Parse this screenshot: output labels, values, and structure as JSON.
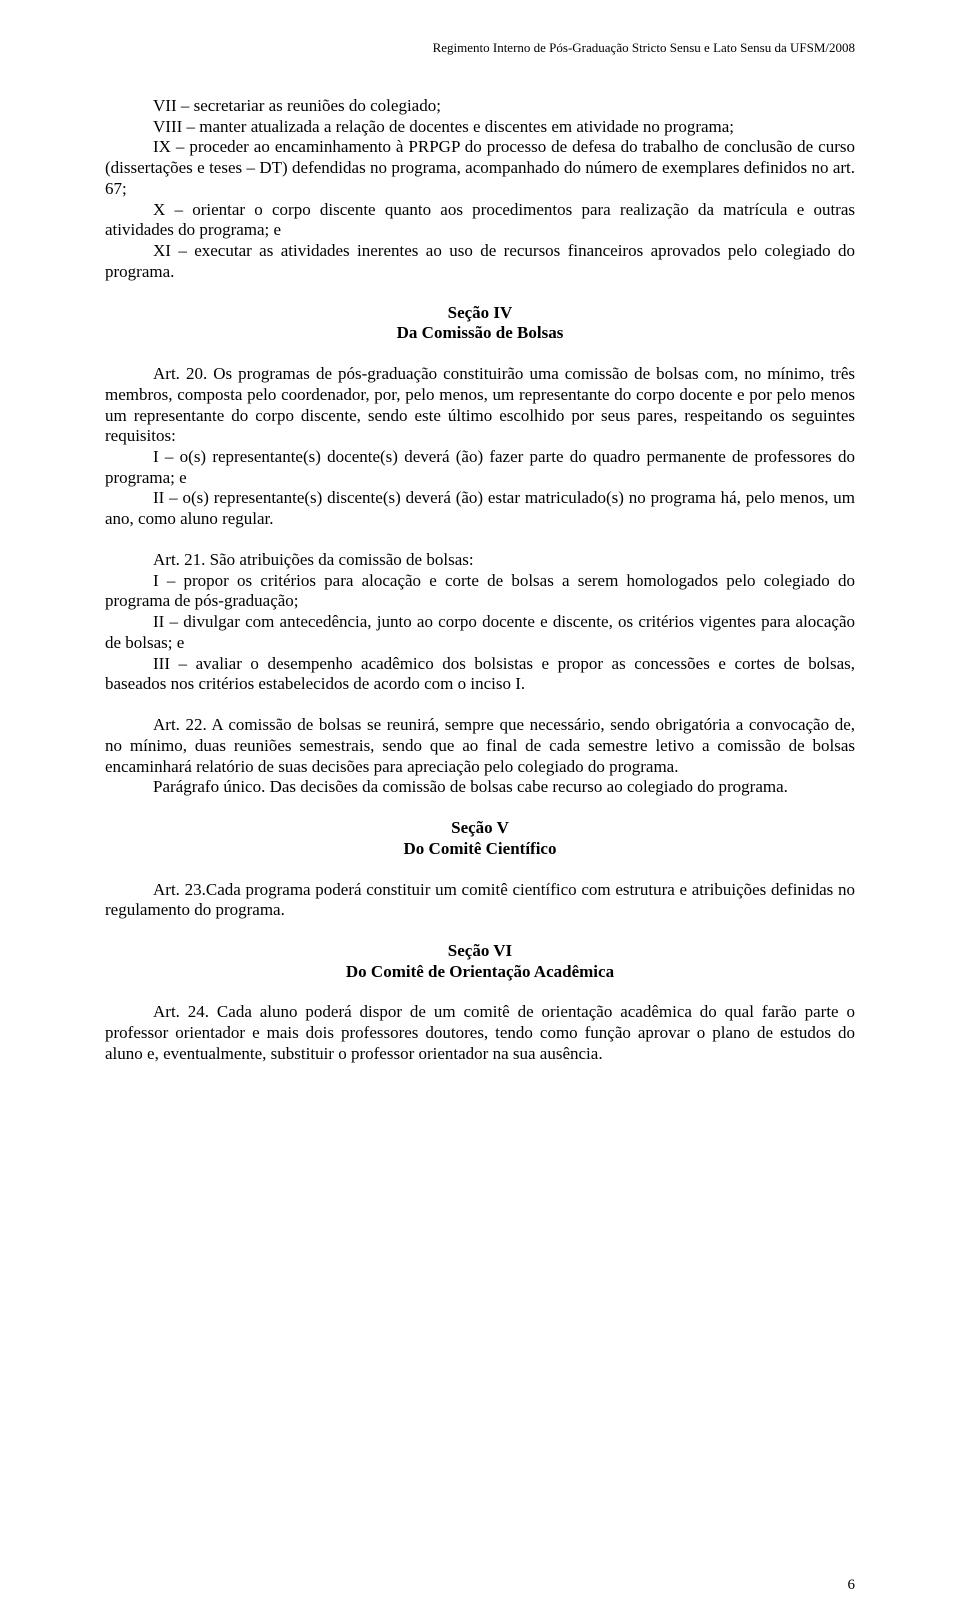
{
  "header": {
    "text": "Regimento Interno de Pós-Graduação Stricto Sensu e Lato Sensu da UFSM/2008"
  },
  "block1": {
    "p1": "VII – secretariar as reuniões do colegiado;",
    "p2": "VIII – manter atualizada a relação de docentes e discentes em atividade no programa;",
    "p3": "IX – proceder ao encaminhamento à PRPGP do processo de defesa do trabalho de conclusão de curso (dissertações e teses – DT) defendidas no programa, acompanhado do número de exemplares definidos no art. 67;",
    "p4": "X – orientar o corpo discente quanto aos procedimentos para realização da matrícula e outras atividades do programa; e",
    "p5": "XI – executar as atividades inerentes ao uso de recursos financeiros aprovados pelo colegiado do programa."
  },
  "section4": {
    "title1": "Seção IV",
    "title2": "Da Comissão de Bolsas"
  },
  "block2": {
    "p1": "Art. 20. Os programas de pós-graduação constituirão uma comissão de bolsas com, no mínimo, três membros, composta pelo coordenador, por, pelo menos, um representante do corpo docente e por pelo menos um representante do corpo discente, sendo este último escolhido por seus pares, respeitando os seguintes requisitos:",
    "p2": "I – o(s) representante(s) docente(s) deverá (ão) fazer parte do quadro permanente de professores do programa; e",
    "p3": "II – o(s) representante(s) discente(s) deverá (ão) estar matriculado(s) no programa há, pelo menos, um ano, como aluno regular."
  },
  "block3": {
    "p1": "Art. 21. São atribuições da comissão de bolsas:",
    "p2": "I – propor os critérios para alocação e corte de bolsas a serem homologados pelo colegiado do programa de pós-graduação;",
    "p3": "II – divulgar com antecedência, junto ao corpo docente e discente, os critérios vigentes para alocação de bolsas; e",
    "p4": "III – avaliar o desempenho acadêmico dos bolsistas e propor as concessões e cortes de bolsas, baseados nos critérios estabelecidos de acordo com o inciso I."
  },
  "block4": {
    "p1": "Art. 22. A comissão de bolsas se reunirá, sempre que necessário, sendo obrigatória a convocação de, no mínimo, duas reuniões semestrais, sendo que ao final de cada semestre letivo a comissão de bolsas encaminhará relatório de suas decisões para apreciação pelo colegiado do programa.",
    "p2": "Parágrafo único. Das decisões da comissão de bolsas cabe recurso ao colegiado do programa."
  },
  "section5": {
    "title1": "Seção V",
    "title2": "Do Comitê Científico"
  },
  "block5": {
    "p1": "Art. 23.Cada programa poderá constituir um comitê científico com estrutura e atribuições definidas no regulamento do programa."
  },
  "section6": {
    "title1": "Seção VI",
    "title2": "Do Comitê de Orientação Acadêmica"
  },
  "block6": {
    "p1": "Art. 24. Cada aluno poderá dispor de um comitê de orientação acadêmica do qual farão parte o professor orientador e mais dois professores doutores, tendo como função aprovar o plano de estudos do aluno e, eventualmente, substituir o professor orientador na sua ausência."
  },
  "pageNumber": "6"
}
